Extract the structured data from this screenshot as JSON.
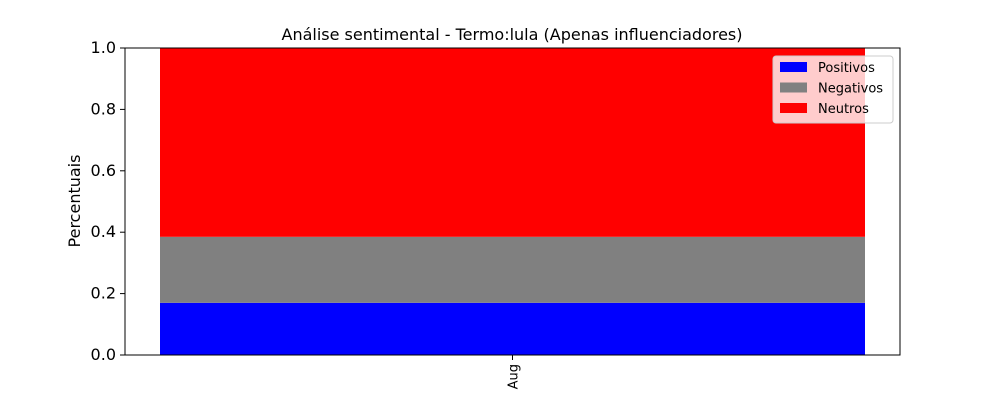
{
  "chart_data": {
    "type": "bar",
    "stacked": true,
    "title": "Análise sentimental - Termo:lula (Apenas influenciadores)",
    "xlabel": "",
    "ylabel": "Percentuais",
    "ylim": [
      0,
      1
    ],
    "yticks": [
      "0.0",
      "0.2",
      "0.4",
      "0.6",
      "0.8",
      "1.0"
    ],
    "categories": [
      "Aug"
    ],
    "series": [
      {
        "name": "Positivos",
        "values": [
          0.17
        ],
        "color": "#0000ff"
      },
      {
        "name": "Negativos",
        "values": [
          0.215
        ],
        "color": "#808080"
      },
      {
        "name": "Neutros",
        "values": [
          0.615
        ],
        "color": "#ff0000"
      }
    ],
    "legend_position": "top-right",
    "grid": false
  }
}
